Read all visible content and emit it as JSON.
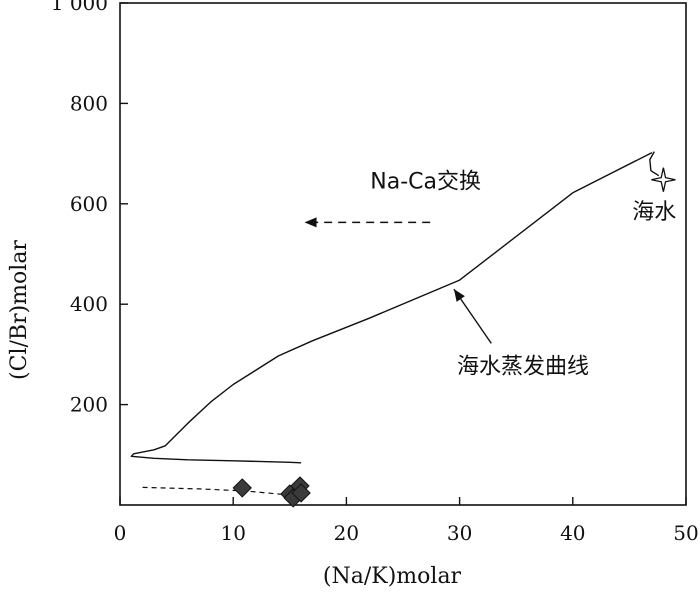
{
  "chart_data": {
    "type": "scatter",
    "title": "",
    "xlabel": "(Na/K)molar",
    "ylabel": "(Cl/Br)molar",
    "xlim": [
      0,
      50
    ],
    "ylim": [
      0,
      1000
    ],
    "xticks": [
      0,
      10,
      20,
      30,
      40,
      50
    ],
    "xtick_labels": [
      "0",
      "10",
      "20",
      "30",
      "40",
      "50"
    ],
    "yticks": [
      200,
      400,
      600,
      800,
      1000
    ],
    "ytick_labels": [
      "200",
      "400",
      "600",
      "800",
      "1 000"
    ],
    "grid": false,
    "series": [
      {
        "kind": "curve",
        "values": [
          [
            47,
            702
          ],
          [
            40,
            622
          ],
          [
            30,
            448
          ],
          [
            22,
            372
          ],
          [
            17,
            327
          ],
          [
            14,
            297
          ],
          [
            10,
            240
          ],
          [
            8,
            205
          ],
          [
            6,
            163
          ],
          [
            4,
            118
          ],
          [
            3,
            110
          ],
          [
            1.2,
            102
          ],
          [
            1,
            97
          ],
          [
            3,
            93
          ],
          [
            6,
            90
          ],
          [
            10,
            88
          ],
          [
            15,
            85
          ],
          [
            16,
            84
          ]
        ]
      },
      {
        "kind": "hook",
        "values": [
          [
            47.2,
            704
          ],
          [
            46.8,
            688
          ],
          [
            46.9,
            666
          ],
          [
            47.6,
            656
          ]
        ]
      },
      {
        "kind": "dashed",
        "values": [
          [
            2,
            35
          ],
          [
            7,
            32
          ],
          [
            11,
            28
          ],
          [
            14,
            22
          ],
          [
            15.5,
            21
          ]
        ]
      },
      {
        "kind": "diamond",
        "values": [
          [
            10.8,
            34
          ],
          [
            15.0,
            22
          ],
          [
            15.3,
            14
          ],
          [
            15.9,
            38
          ],
          [
            16.0,
            24
          ]
        ]
      }
    ],
    "seawater_marker": {
      "x": 48,
      "y": 648
    },
    "annotations": [
      {
        "text": "Na-Ca交换",
        "x": 27,
        "y": 630
      },
      {
        "text": "海水",
        "x": 47.2,
        "y": 570
      },
      {
        "text": "海水蒸发曲线",
        "x": 35.6,
        "y": 262
      }
    ],
    "arrows": [
      {
        "from": [
          27.4,
          563
        ],
        "to": [
          16.3,
          563
        ],
        "style": "dashed"
      },
      {
        "from": [
          32.8,
          322
        ],
        "to": [
          29.5,
          430
        ],
        "style": "solid"
      }
    ]
  }
}
